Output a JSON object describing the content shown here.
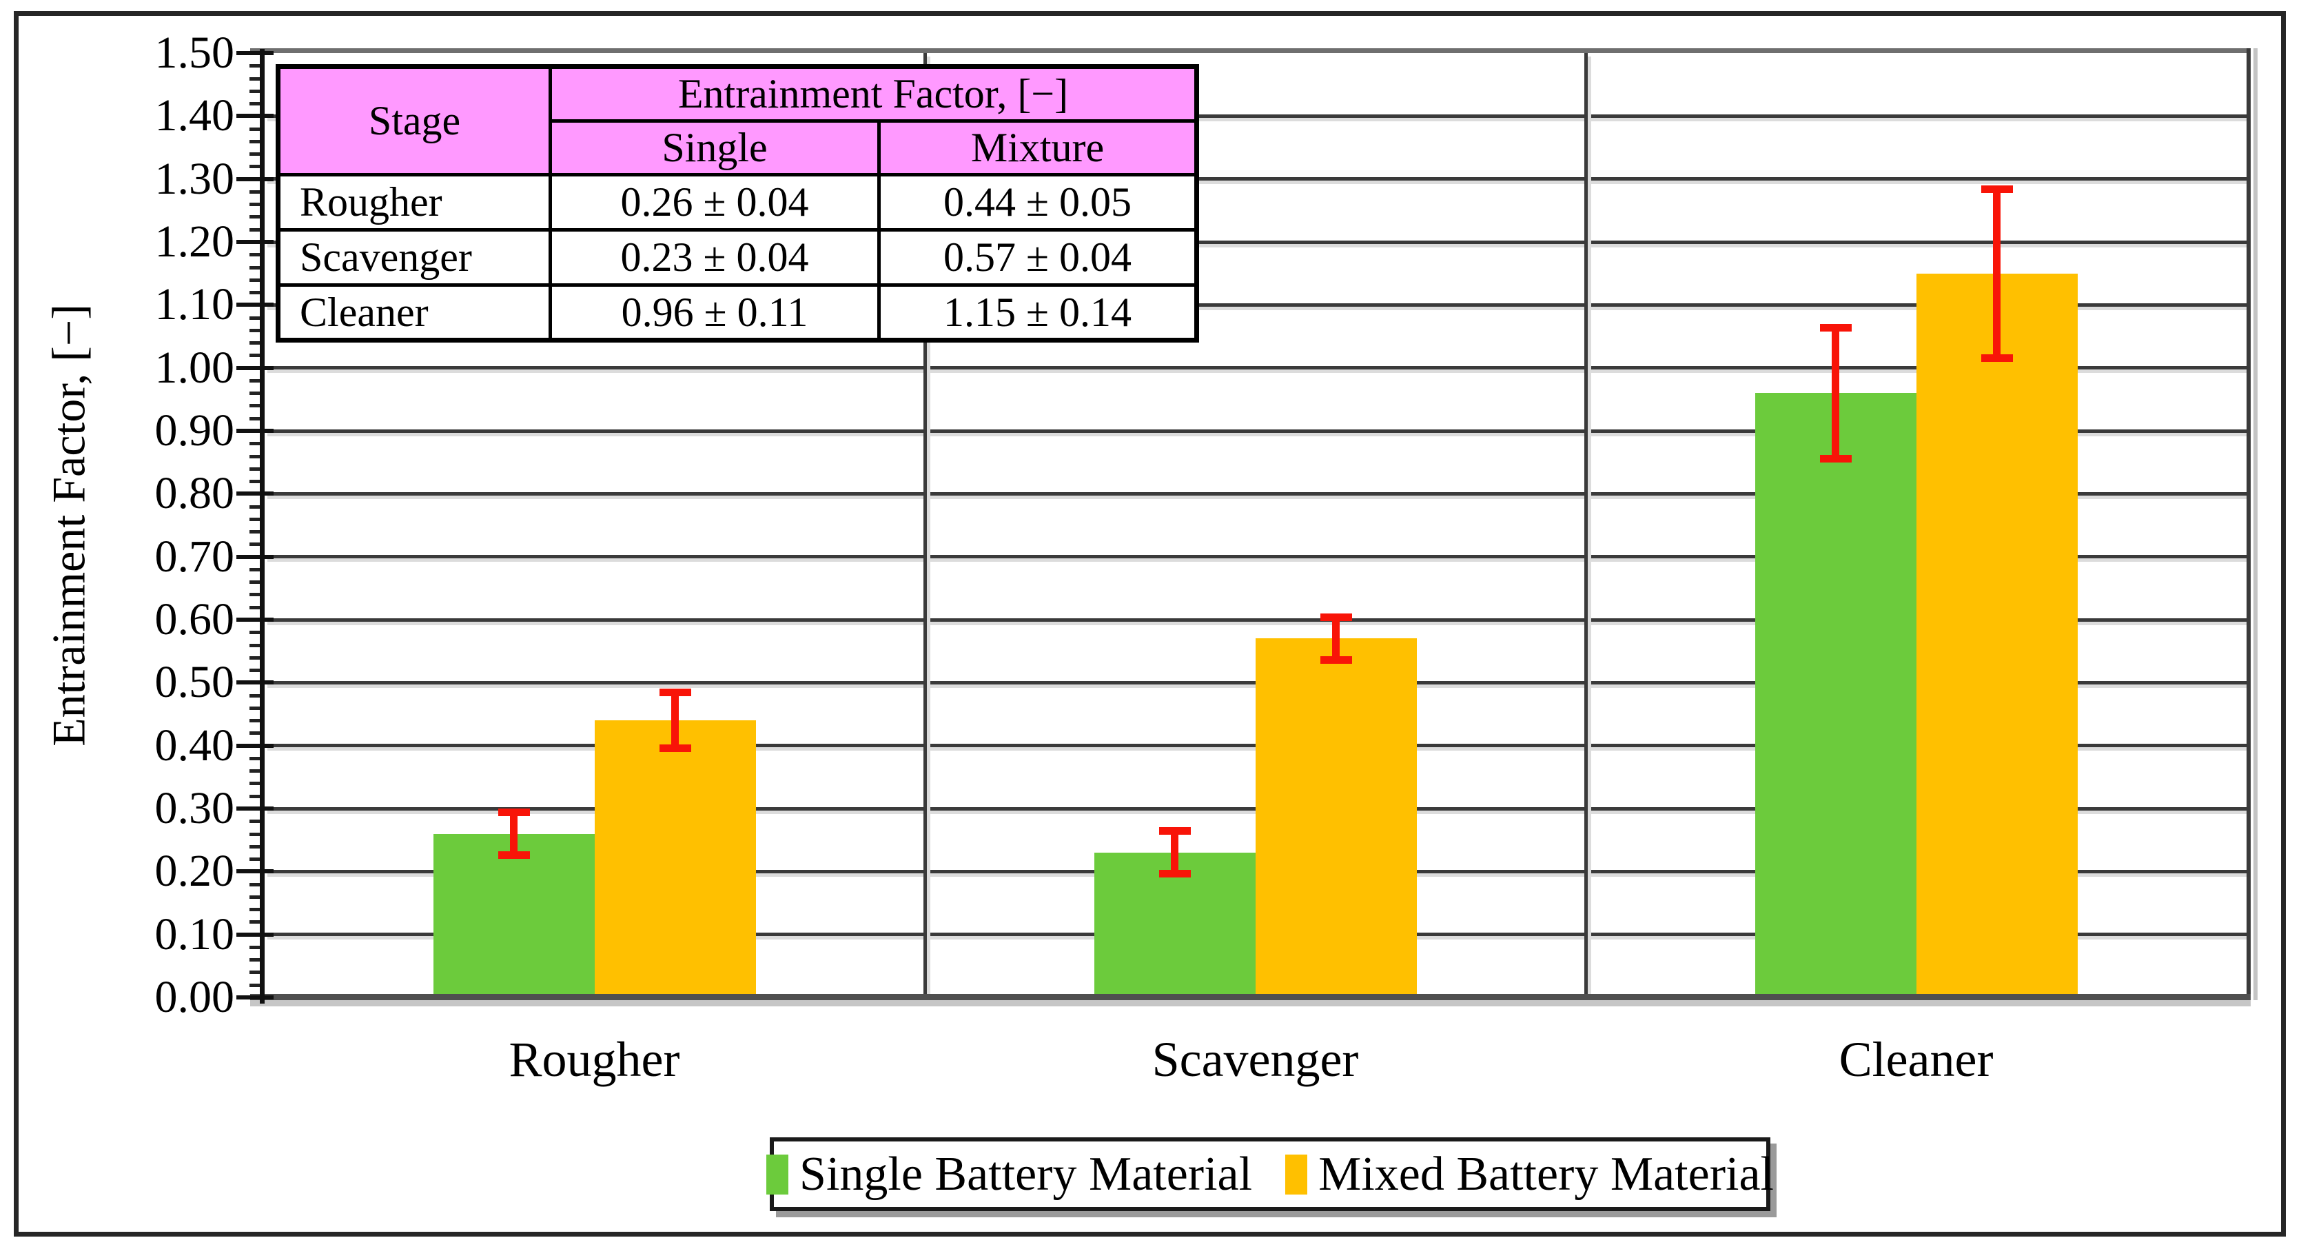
{
  "figure": {
    "background": "#FFFFFF",
    "border_color": "#262626"
  },
  "chart_data": {
    "type": "bar",
    "title": "",
    "xlabel": "",
    "ylabel": "Entrainment Factor, [−]",
    "categories": [
      "Rougher",
      "Scavenger",
      "Cleaner"
    ],
    "series": [
      {
        "name": "Single Battery Material",
        "color": "#6CCB3C",
        "values": [
          0.26,
          0.23,
          0.96
        ],
        "errors": [
          0.04,
          0.04,
          0.11
        ]
      },
      {
        "name": "Mixed Battery Material",
        "color": "#FFC000",
        "values": [
          0.44,
          0.57,
          1.15
        ],
        "errors": [
          0.05,
          0.04,
          0.14
        ]
      }
    ],
    "error_bar_color": "#F81408",
    "ylim": [
      0,
      1.5
    ],
    "ytick_step": 0.1,
    "ytick_labels": [
      "0.00",
      "0.10",
      "0.20",
      "0.30",
      "0.40",
      "0.50",
      "0.60",
      "0.70",
      "0.80",
      "0.90",
      "1.00",
      "1.10",
      "1.20",
      "1.30",
      "1.40",
      "1.50"
    ],
    "minor_tick_step": 0.02,
    "grid": true,
    "gridline_color": "#3A3A3A",
    "legend_position": "bottom-center"
  },
  "inset_table": {
    "header_bg": "#FF99FF",
    "stage_header": "Stage",
    "group_header": "Entrainment Factor, [−]",
    "col_headers": [
      "Single",
      "Mixture"
    ],
    "rows": [
      {
        "stage": "Rougher",
        "single": "0.26 ± 0.04",
        "mixture": "0.44 ± 0.05"
      },
      {
        "stage": "Scavenger",
        "single": "0.23 ± 0.04",
        "mixture": "0.57 ± 0.04"
      },
      {
        "stage": "Cleaner",
        "single": "0.96 ± 0.11",
        "mixture": "1.15 ± 0.14"
      }
    ]
  },
  "legend": {
    "items": [
      {
        "label": "Single Battery Material",
        "color": "#6CCB3C"
      },
      {
        "label": "Mixed Battery Material",
        "color": "#FFC000"
      }
    ]
  }
}
